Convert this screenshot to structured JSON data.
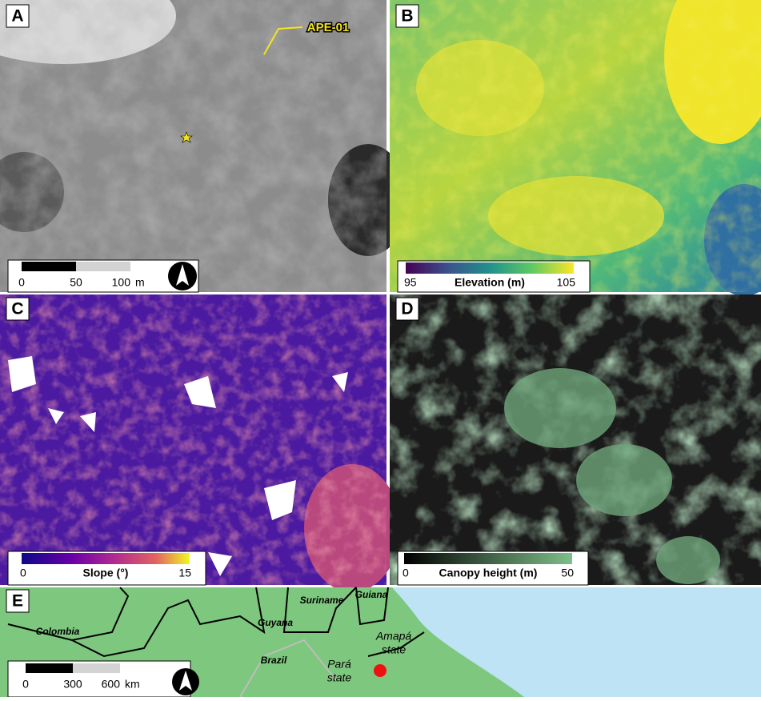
{
  "panels": {
    "A": {
      "letter": "A",
      "site_label": "APE-01",
      "scale_bar": {
        "ticks": [
          0,
          50,
          100
        ],
        "unit": "m"
      }
    },
    "B": {
      "letter": "B",
      "colorbar": {
        "min": 95,
        "max": 105,
        "label": "Elevation (m)"
      }
    },
    "C": {
      "letter": "C",
      "colorbar": {
        "min": 0,
        "max": 15,
        "label": "Slope (°)"
      }
    },
    "D": {
      "letter": "D",
      "colorbar": {
        "min": 0,
        "max": 50,
        "label": "Canopy height (m)"
      }
    },
    "E": {
      "letter": "E",
      "scale_bar": {
        "ticks": [
          0,
          300,
          600
        ],
        "unit": "km"
      },
      "countries": [
        "Colombia",
        "Guyana",
        "Suriname",
        "Guiana",
        "Brazil"
      ],
      "states": [
        [
          "Pará",
          "state"
        ],
        [
          "Amapá",
          "state"
        ]
      ]
    }
  }
}
